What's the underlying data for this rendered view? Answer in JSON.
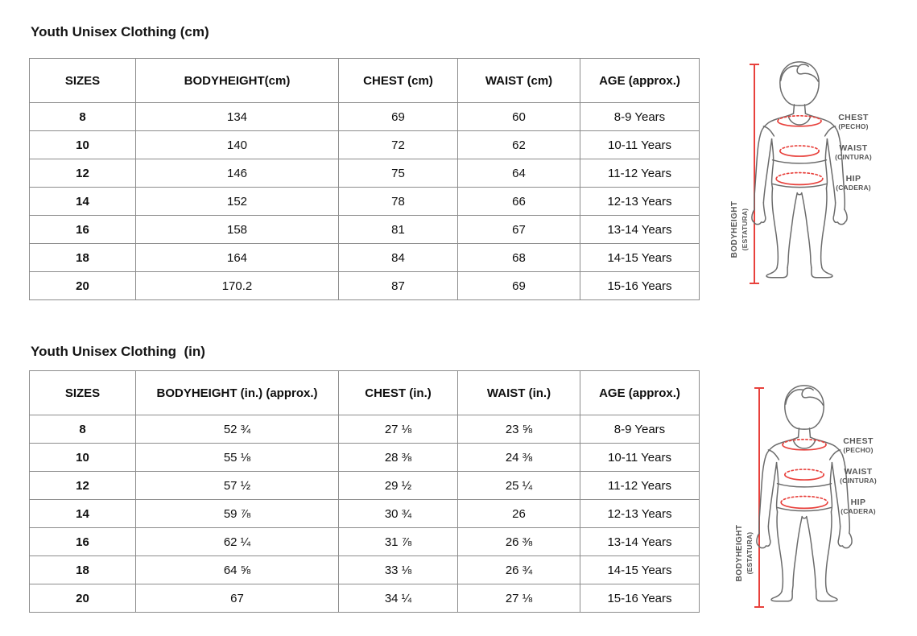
{
  "page": {
    "background": "#ffffff"
  },
  "colors": {
    "table_border": "#8c8c8c",
    "text": "#0f0f0f",
    "figure_outline": "#6b6b6b",
    "measure_red": "#e8413c",
    "figure_label_gray": "#565656"
  },
  "tables": [
    {
      "title": "Youth Unisex Clothing (cm)",
      "columns": [
        "SIZES",
        "BODYHEIGHT(cm)",
        "CHEST (cm)",
        "WAIST (cm)",
        "AGE (approx.)"
      ],
      "rows": [
        [
          "8",
          "134",
          "69",
          "60",
          "8-9 Years"
        ],
        [
          "10",
          "140",
          "72",
          "62",
          "10-11 Years"
        ],
        [
          "12",
          "146",
          "75",
          "64",
          "11-12 Years"
        ],
        [
          "14",
          "152",
          "78",
          "66",
          "12-13 Years"
        ],
        [
          "16",
          "158",
          "81",
          "67",
          "13-14 Years"
        ],
        [
          "18",
          "164",
          "84",
          "68",
          "14-15 Years"
        ],
        [
          "20",
          "170.2",
          "87",
          "69",
          "15-16 Years"
        ]
      ]
    },
    {
      "title": "Youth Unisex Clothing  (in)",
      "columns": [
        "SIZES",
        "BODYHEIGHT (in.) (approx.)",
        "CHEST (in.)",
        "WAIST (in.)",
        "AGE (approx.)"
      ],
      "rows": [
        [
          "8",
          "52 ¾",
          "27 ⅛",
          "23 ⅝",
          "8-9 Years"
        ],
        [
          "10",
          "55 ⅛",
          "28 ⅜",
          "24 ⅜",
          "10-11 Years"
        ],
        [
          "12",
          "57 ½",
          "29 ½",
          "25 ¼",
          "11-12 Years"
        ],
        [
          "14",
          "59 ⅞",
          "30 ¾",
          "26",
          "12-13 Years"
        ],
        [
          "16",
          "62 ¼",
          "31 ⅞",
          "26 ⅜",
          "13-14 Years"
        ],
        [
          "18",
          "64 ⅝",
          "33 ⅛",
          "26 ¾",
          "14-15 Years"
        ],
        [
          "20",
          "67",
          "34 ¼",
          "27 ⅛",
          "15-16 Years"
        ]
      ]
    }
  ],
  "figure": {
    "bodyheight_label": "BODYHEIGHT",
    "bodyheight_sublabel": "(ESTATURA)",
    "measures": [
      {
        "label": "CHEST",
        "sublabel": "(PECHO)"
      },
      {
        "label": "WAIST",
        "sublabel": "(CINTURA)"
      },
      {
        "label": "HIP",
        "sublabel": "(CADERA)"
      }
    ]
  }
}
